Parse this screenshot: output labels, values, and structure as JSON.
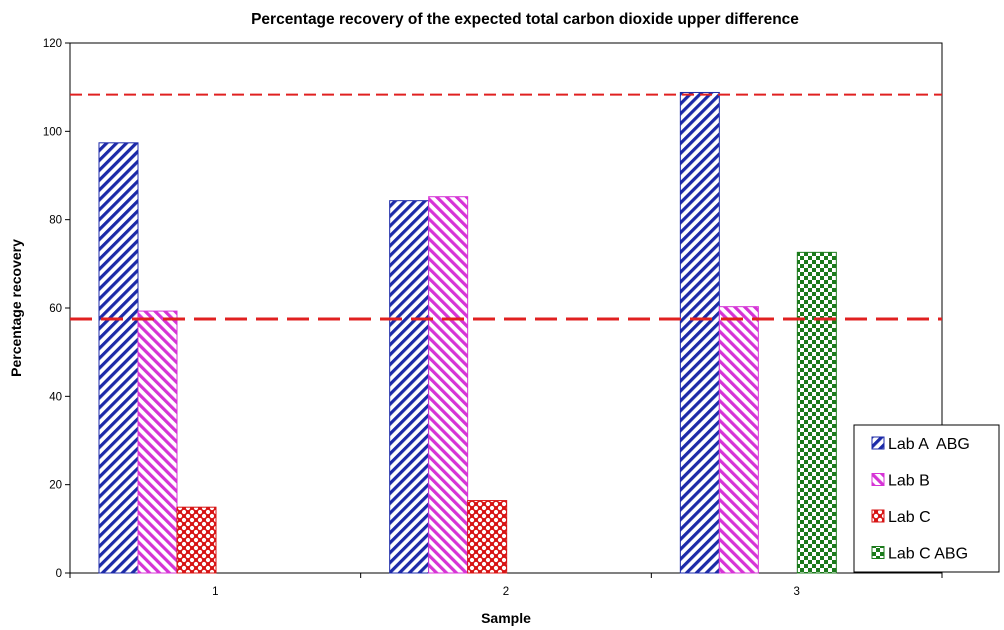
{
  "chart_data": {
    "type": "bar",
    "title": "Percentage recovery of the expected total carbon dioxide upper difference",
    "xlabel": "Sample",
    "ylabel": "Percentage recovery",
    "categories": [
      "1",
      "2",
      "3"
    ],
    "ylim": [
      0,
      120
    ],
    "yticks": [
      "0",
      "20",
      "40",
      "60",
      "80",
      "100",
      "120"
    ],
    "grid": false,
    "legend_position": "bottom-right",
    "series": [
      {
        "name": "Lab A  ABG",
        "color": "#1c2aa8",
        "pattern": "diagonal-left",
        "values": [
          97.4,
          84.3,
          108.8
        ]
      },
      {
        "name": "Lab B",
        "color": "#d633d6",
        "pattern": "diagonal-right",
        "values": [
          59.3,
          85.2,
          60.3
        ]
      },
      {
        "name": "Lab C",
        "color": "#d71414",
        "pattern": "diamond",
        "values": [
          14.9,
          16.4,
          null
        ]
      },
      {
        "name": "Lab C ABG",
        "color": "#1b7a1b",
        "pattern": "checker",
        "values": [
          null,
          null,
          72.6
        ]
      }
    ],
    "reference_lines": [
      {
        "value": 108.3,
        "color": "#e02020",
        "style": "dashed-thin"
      },
      {
        "value": 57.5,
        "color": "#e02020",
        "style": "dashed-thick"
      }
    ]
  }
}
